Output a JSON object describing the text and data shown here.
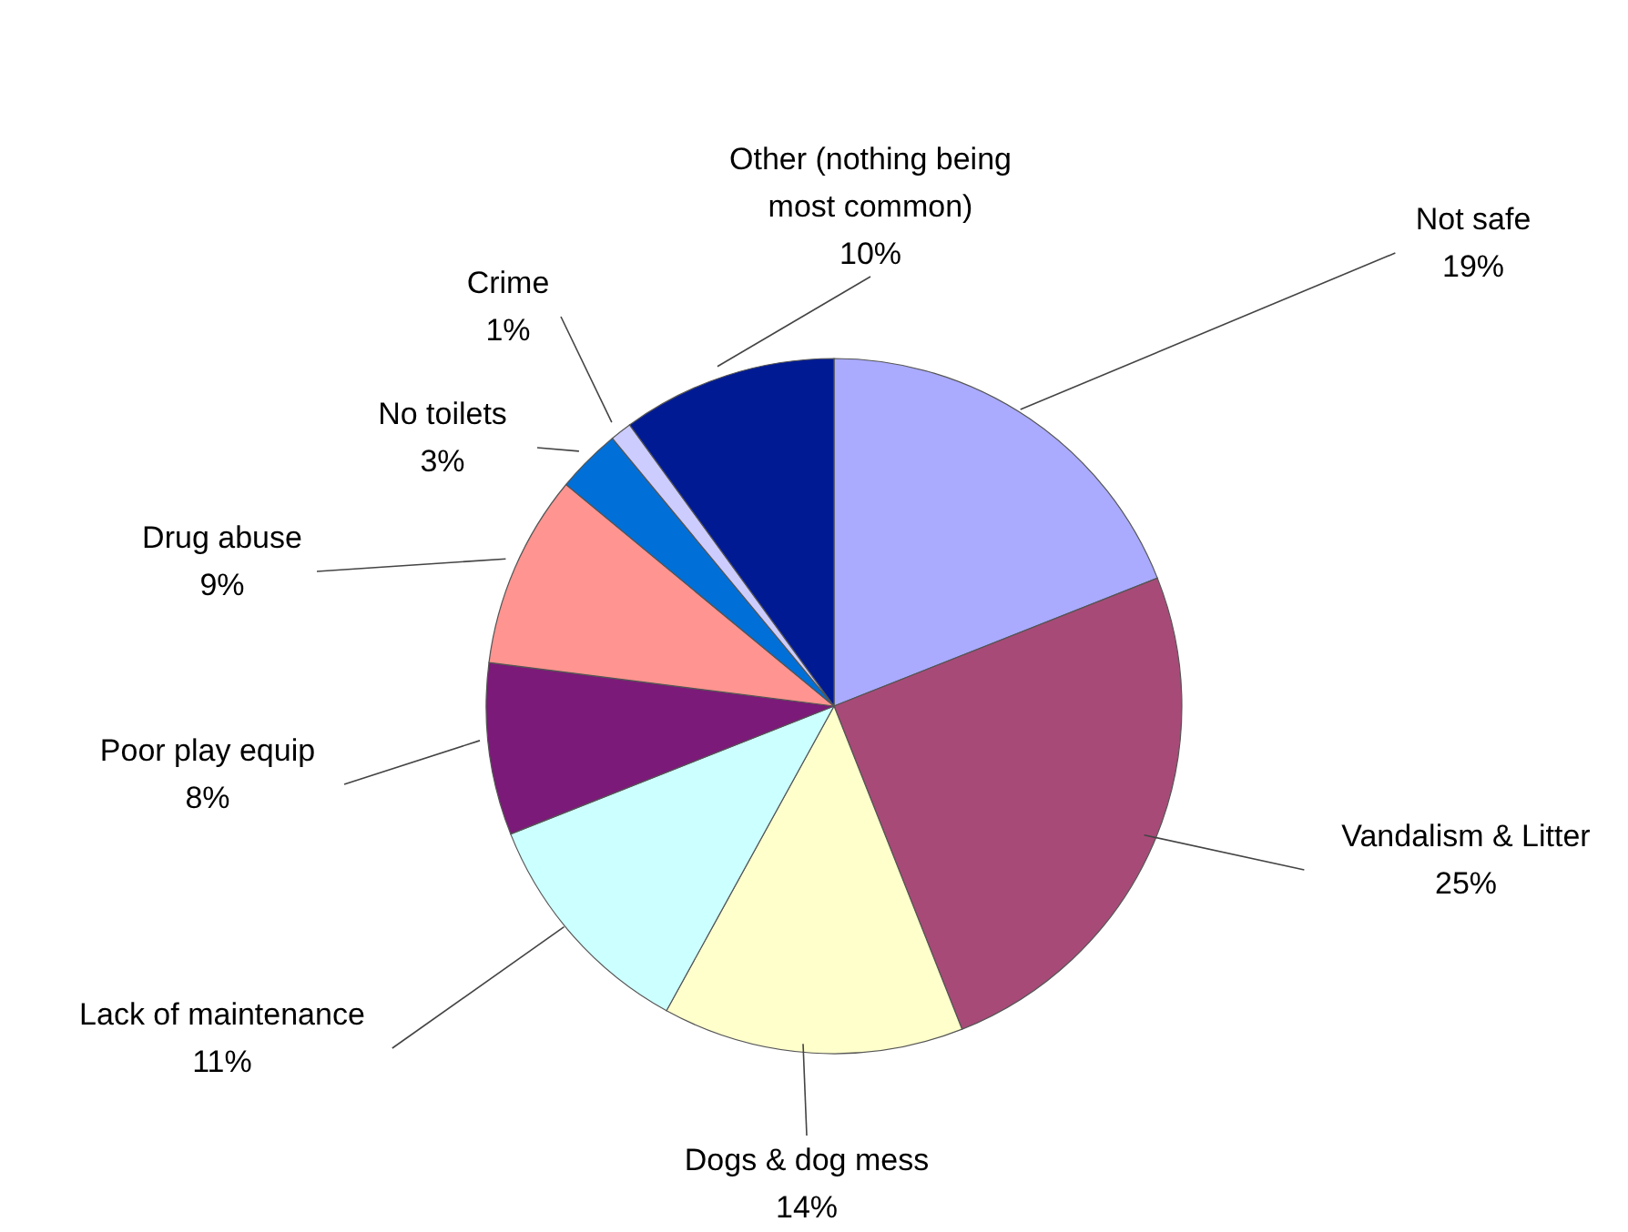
{
  "chart_data": {
    "type": "pie",
    "categories": [
      "Not safe",
      "Vandalism & Litter",
      "Dogs & dog mess",
      "Lack of maintenance",
      "Poor play equip",
      "Drug abuse",
      "No toilets",
      "Crime",
      "Other (nothing being most common)"
    ],
    "values": [
      19,
      25,
      14,
      11,
      8,
      9,
      3,
      1,
      10
    ],
    "value_labels": [
      "19%",
      "25%",
      "14%",
      "11%",
      "8%",
      "9%",
      "3%",
      "1%",
      "10%"
    ],
    "colors": [
      "#aaaaff",
      "#a84a78",
      "#ffffcc",
      "#ccffff",
      "#7b1a78",
      "#ff9490",
      "#0070d8",
      "#ccccff",
      "#001a94"
    ],
    "legend": false
  }
}
